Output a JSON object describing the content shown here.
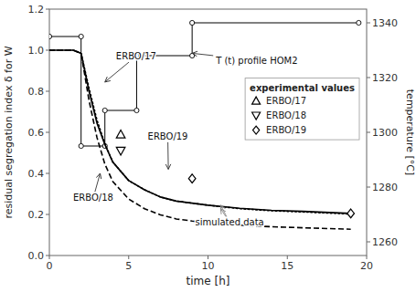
{
  "chart_data": {
    "type": "line",
    "xlabel": "time [h]",
    "ylabel": "residual segregation index δ for W",
    "y2label": "temperature [°C]",
    "xlim": [
      0,
      20
    ],
    "ylim": [
      0.0,
      1.2
    ],
    "y2lim": [
      1255,
      1345
    ],
    "xticks": [
      0,
      5,
      10,
      15,
      20
    ],
    "yticks": [
      {
        "value": 0.0,
        "label": "0.0"
      },
      0.2,
      0.4,
      0.6,
      0.8,
      {
        "value": 1.0,
        "label": "1.0"
      },
      1.2
    ],
    "y2ticks": [
      1260,
      1280,
      1300,
      1320,
      1340
    ],
    "grid": false,
    "legend": "upper right",
    "legend_title": "experimental values",
    "series": [
      {
        "type": "line",
        "axis": "y2",
        "color": "black",
        "line_style": "solid",
        "marker": "circle",
        "x": [
          0,
          2.0,
          2.0,
          3.5,
          3.5,
          5.5,
          5.5,
          9.0,
          9.0,
          19.5
        ],
        "values": [
          1335,
          1335,
          1295,
          1295,
          1308,
          1308,
          1328,
          1328,
          1340,
          1340
        ]
      },
      {
        "type": "line",
        "color": "black",
        "line_style": "solid",
        "x": [
          0,
          0.5,
          1.0,
          1.5,
          2.0,
          2.5,
          3.0,
          3.5,
          4.0,
          5.0,
          6.0,
          7.0,
          8.0,
          9.0,
          10.0,
          12.0,
          14.0,
          16.0,
          19.0
        ],
        "values": [
          1.0,
          1.0,
          1.0,
          1.0,
          0.985,
          0.8,
          0.645,
          0.54,
          0.455,
          0.365,
          0.32,
          0.285,
          0.265,
          0.255,
          0.245,
          0.23,
          0.22,
          0.215,
          0.205
        ]
      },
      {
        "type": "line",
        "color": "black",
        "line_style": "dashed",
        "x": [
          0,
          0.5,
          1.0,
          1.5,
          2.0,
          2.5,
          3.0,
          3.5,
          4.0,
          5.0,
          6.0,
          7.0,
          8.0,
          9.0,
          10.0,
          12.0,
          14.0,
          16.0,
          19.0
        ],
        "values": [
          1.0,
          1.0,
          1.0,
          1.0,
          0.985,
          0.755,
          0.575,
          0.445,
          0.36,
          0.275,
          0.228,
          0.198,
          0.178,
          0.168,
          0.16,
          0.148,
          0.14,
          0.135,
          0.128
        ]
      },
      {
        "type": "line",
        "color": "black",
        "line_style": "dotted",
        "x": [
          0,
          0.5,
          1.0,
          1.5,
          2.0,
          2.5,
          3.0,
          3.5,
          4.0,
          5.0,
          6.0,
          7.0,
          8.0,
          9.0,
          10.0,
          12.0,
          14.0,
          16.0,
          19.0
        ],
        "values": [
          1.0,
          1.0,
          1.0,
          1.0,
          0.985,
          0.815,
          0.66,
          0.545,
          0.455,
          0.365,
          0.32,
          0.285,
          0.265,
          0.255,
          0.245,
          0.228,
          0.218,
          0.212,
          0.202
        ]
      },
      {
        "type": "scatter",
        "name": "ERBO/17",
        "color": "black",
        "marker": "triangle-up",
        "x": [
          4.5
        ],
        "values": [
          0.59
        ]
      },
      {
        "type": "scatter",
        "name": "ERBO/18",
        "color": "black",
        "marker": "triangle-down",
        "x": [
          4.5
        ],
        "values": [
          0.51
        ]
      },
      {
        "type": "scatter",
        "name": "ERBO/19",
        "color": "black",
        "marker": "diamond",
        "x": [
          9.0,
          19.0
        ],
        "values": [
          0.375,
          0.205
        ]
      }
    ],
    "annotations": [
      {
        "text": "ERBO/17",
        "text_xy": [
          4.2,
          0.955
        ],
        "targets": [
          [
            3.5,
            0.845
          ]
        ]
      },
      {
        "text": "ERBO/18",
        "text_xy": [
          1.5,
          0.265
        ],
        "targets": [
          [
            3.2,
            0.4
          ]
        ]
      },
      {
        "text": "ERBO/19",
        "text_xy": [
          6.2,
          0.565
        ],
        "targets": [
          [
            7.5,
            0.42
          ]
        ]
      },
      {
        "text": "T (t) profile HOM2",
        "text_xy": [
          10.5,
          0.935
        ],
        "targets": [
          [
            9.0,
            0.985
          ]
        ]
      },
      {
        "text": "simulated data",
        "text_xy": [
          9.2,
          0.145
        ],
        "targets": [
          [
            10.8,
            0.245
          ],
          [
            10.8,
            0.228
          ],
          [
            10.8,
            0.155
          ]
        ]
      }
    ]
  }
}
